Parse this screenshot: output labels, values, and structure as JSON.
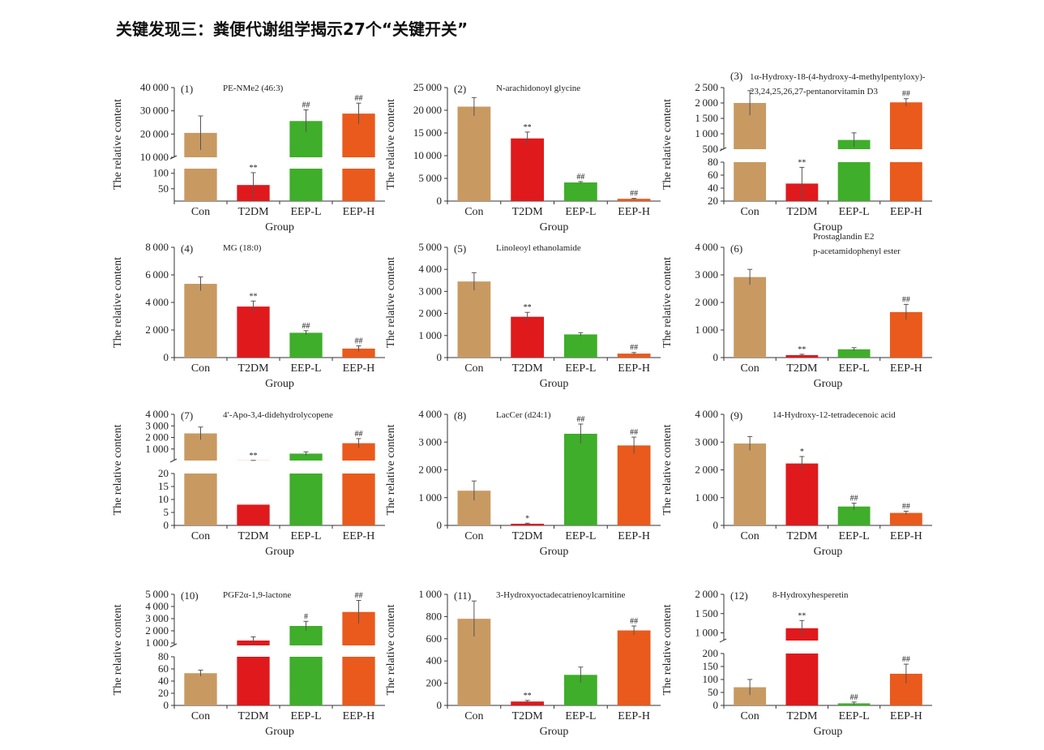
{
  "page": {
    "title": "关键发现三：粪便代谢组学揭示27个“关键开关”"
  },
  "colors": {
    "Con": "#c89a62",
    "T2DM": "#e0191c",
    "EEP-L": "#3fae2a",
    "EEP-H": "#e95a1c",
    "axis": "#333333"
  },
  "chart_data": [
    {
      "type": "bar",
      "panel": "(1)",
      "title": [
        "PE-NMe2 (46:3)"
      ],
      "ylabel": "The relative content",
      "xlabel": "Group",
      "categories": [
        "Con",
        "T2DM",
        "EEP-L",
        "EEP-H"
      ],
      "axis_segments": [
        {
          "range": [
            10,
            115
          ],
          "ticks": [
            50,
            100
          ]
        },
        {
          "range": [
            10000,
            40000
          ],
          "ticks": [
            10000,
            20000,
            30000,
            40000
          ]
        }
      ],
      "values": [
        20500,
        62,
        25600,
        28800
      ],
      "errors": [
        7300,
        40,
        4800,
        4500
      ],
      "significance": [
        "",
        "**",
        "##",
        "##"
      ]
    },
    {
      "type": "bar",
      "panel": "(2)",
      "title": [
        "N-arachidonoyl glycine"
      ],
      "ylabel": "The relative content",
      "xlabel": "Group",
      "categories": [
        "Con",
        "T2DM",
        "EEP-L",
        "EEP-H"
      ],
      "axis_segments": [
        {
          "range": [
            0,
            25000
          ],
          "ticks": [
            0,
            5000,
            10000,
            15000,
            20000,
            25000
          ]
        }
      ],
      "values": [
        20800,
        13800,
        4100,
        500
      ],
      "errors": [
        2000,
        1400,
        200,
        100
      ],
      "significance": [
        "",
        "**",
        "##",
        "##"
      ]
    },
    {
      "type": "bar",
      "panel": "(3)",
      "title": [
        "1α-Hydroxy-18-(4-hydroxy-4-methylpentyloxy)-",
        "23,24,25,26,27-pentanorvitamin D3"
      ],
      "ylabel": "The relative content",
      "xlabel": "Group",
      "categories": [
        "Con",
        "T2DM",
        "EEP-L",
        "EEP-H"
      ],
      "axis_segments": [
        {
          "range": [
            20,
            80
          ],
          "ticks": [
            20,
            40,
            60,
            80
          ]
        },
        {
          "range": [
            500,
            2500
          ],
          "ticks": [
            500,
            1000,
            1500,
            2000,
            2500
          ]
        }
      ],
      "values": [
        2000,
        47,
        800,
        2020
      ],
      "errors": [
        400,
        25,
        230,
        120
      ],
      "significance": [
        "",
        "**",
        "",
        "##"
      ]
    },
    {
      "type": "bar",
      "panel": "(4)",
      "title": [
        "MG (18:0)"
      ],
      "ylabel": "The relative content",
      "xlabel": "Group",
      "categories": [
        "Con",
        "T2DM",
        "EEP-L",
        "EEP-H"
      ],
      "axis_segments": [
        {
          "range": [
            0,
            8000
          ],
          "ticks": [
            0,
            2000,
            4000,
            6000,
            8000
          ]
        }
      ],
      "values": [
        5350,
        3700,
        1800,
        650
      ],
      "errors": [
        500,
        400,
        150,
        200
      ],
      "significance": [
        "",
        "**",
        "##",
        "##"
      ]
    },
    {
      "type": "bar",
      "panel": "(5)",
      "title": [
        "Linoleoyl ethanolamide"
      ],
      "ylabel": "The relative content",
      "xlabel": "Group",
      "categories": [
        "Con",
        "T2DM",
        "EEP-L",
        "EEP-H"
      ],
      "axis_segments": [
        {
          "range": [
            0,
            5000
          ],
          "ticks": [
            0,
            1000,
            2000,
            3000,
            4000,
            5000
          ]
        }
      ],
      "values": [
        3450,
        1850,
        1050,
        180
      ],
      "errors": [
        400,
        200,
        80,
        50
      ],
      "significance": [
        "",
        "**",
        "",
        "##"
      ]
    },
    {
      "type": "bar",
      "panel": "(6)",
      "title": [
        "Prostaglandin E2",
        "p-acetamidophenyl ester"
      ],
      "ylabel": "The relative content",
      "xlabel": "Group",
      "categories": [
        "Con",
        "T2DM",
        "EEP-L",
        "EEP-H"
      ],
      "axis_segments": [
        {
          "range": [
            0,
            4000
          ],
          "ticks": [
            0,
            1000,
            2000,
            3000,
            4000
          ]
        }
      ],
      "values": [
        2920,
        90,
        300,
        1650
      ],
      "errors": [
        280,
        30,
        60,
        280
      ],
      "significance": [
        "",
        "**",
        "",
        "##"
      ]
    },
    {
      "type": "bar",
      "panel": "(7)",
      "title": [
        "4′-Apo-3,4-didehydrolycopene"
      ],
      "ylabel": "The relative content",
      "xlabel": "Group",
      "categories": [
        "Con",
        "T2DM",
        "EEP-L",
        "EEP-H"
      ],
      "axis_segments": [
        {
          "range": [
            0,
            20
          ],
          "ticks": [
            0,
            5,
            10,
            15,
            20
          ]
        },
        {
          "range": [
            0,
            4000
          ],
          "ticks": [
            1000,
            2000,
            3000,
            4000
          ]
        }
      ],
      "values": [
        2350,
        8,
        600,
        1500
      ],
      "errors": [
        550,
        6,
        150,
        400
      ],
      "significance": [
        "",
        "**",
        "",
        "##"
      ]
    },
    {
      "type": "bar",
      "panel": "(8)",
      "title": [
        "LacCer (d24:1)"
      ],
      "ylabel": "The relative content",
      "xlabel": "Group",
      "categories": [
        "Con",
        "T2DM",
        "EEP-L",
        "EEP-H"
      ],
      "axis_segments": [
        {
          "range": [
            0,
            4000
          ],
          "ticks": [
            0,
            1000,
            2000,
            3000,
            4000
          ]
        }
      ],
      "values": [
        1250,
        60,
        3300,
        2880
      ],
      "errors": [
        350,
        20,
        350,
        300
      ],
      "significance": [
        "",
        "*",
        "##",
        "##"
      ]
    },
    {
      "type": "bar",
      "panel": "(9)",
      "title": [
        "14-Hydroxy-12-tetradecenoic acid"
      ],
      "ylabel": "The relative content",
      "xlabel": "Group",
      "categories": [
        "Con",
        "T2DM",
        "EEP-L",
        "EEP-H"
      ],
      "axis_segments": [
        {
          "range": [
            0,
            4000
          ],
          "ticks": [
            0,
            1000,
            2000,
            3000,
            4000
          ]
        }
      ],
      "values": [
        2950,
        2230,
        680,
        450
      ],
      "errors": [
        250,
        250,
        120,
        60
      ],
      "significance": [
        "",
        "*",
        "##",
        "##"
      ]
    },
    {
      "type": "bar",
      "panel": "(10)",
      "title": [
        "PGF2α-1,9-lactone"
      ],
      "ylabel": "The relative content",
      "xlabel": "Group",
      "categories": [
        "Con",
        "T2DM",
        "EEP-L",
        "EEP-H"
      ],
      "axis_segments": [
        {
          "range": [
            0,
            80
          ],
          "ticks": [
            0,
            20,
            40,
            60,
            80
          ]
        },
        {
          "range": [
            800,
            5000
          ],
          "ticks": [
            1000,
            2000,
            3000,
            4000,
            5000
          ]
        }
      ],
      "values": [
        53,
        1200,
        2400,
        3550
      ],
      "errors": [
        5,
        300,
        380,
        950
      ],
      "significance": [
        "",
        "",
        "#",
        "##"
      ]
    },
    {
      "type": "bar",
      "panel": "(11)",
      "title": [
        "3-Hydroxyoctadecatrienoylcarnitine"
      ],
      "ylabel": "The relative content",
      "xlabel": "Group",
      "categories": [
        "Con",
        "T2DM",
        "EEP-L",
        "EEP-H"
      ],
      "axis_segments": [
        {
          "range": [
            0,
            1000
          ],
          "ticks": [
            0,
            200,
            400,
            600,
            800,
            1000
          ]
        }
      ],
      "values": [
        780,
        35,
        275,
        675
      ],
      "errors": [
        160,
        10,
        70,
        40
      ],
      "significance": [
        "",
        "**",
        "",
        "##"
      ]
    },
    {
      "type": "bar",
      "panel": "(12)",
      "title": [
        "8-Hydroxyhesperetin"
      ],
      "ylabel": "The relative content",
      "xlabel": "Group",
      "categories": [
        "Con",
        "T2DM",
        "EEP-L",
        "EEP-H"
      ],
      "axis_segments": [
        {
          "range": [
            0,
            200
          ],
          "ticks": [
            0,
            50,
            100,
            150,
            200
          ]
        },
        {
          "range": [
            800,
            2000
          ],
          "ticks": [
            1000,
            1500,
            2000
          ]
        }
      ],
      "values": [
        70,
        1120,
        8,
        122
      ],
      "errors": [
        30,
        200,
        5,
        37
      ],
      "significance": [
        "",
        "**",
        "##",
        "##"
      ]
    }
  ]
}
